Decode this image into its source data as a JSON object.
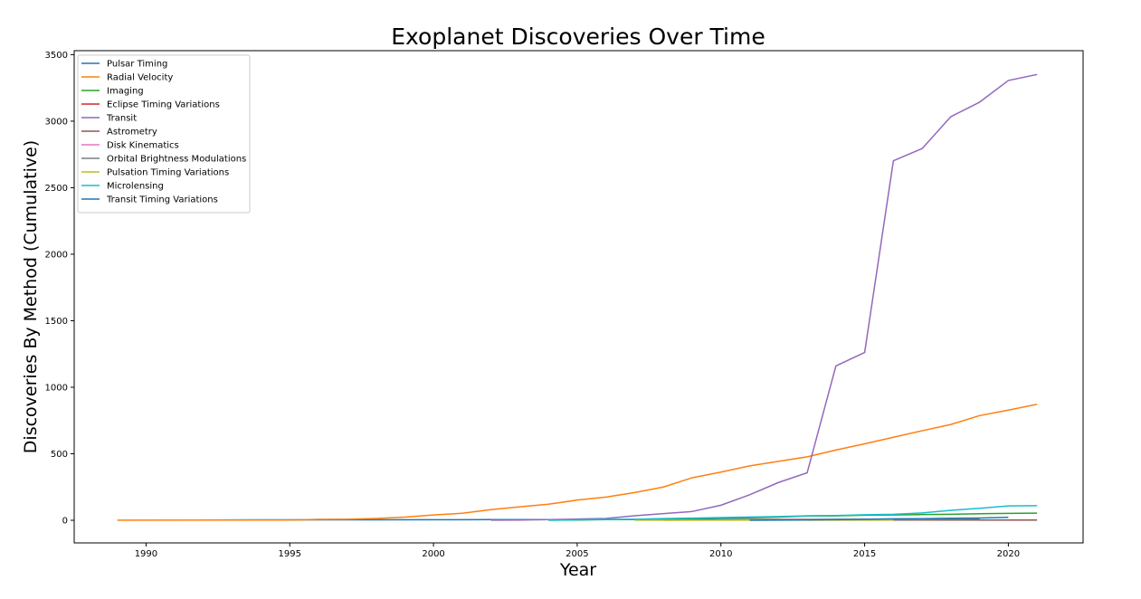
{
  "chart_data": {
    "type": "line",
    "title": "Exoplanet Discoveries Over Time",
    "xlabel": "Year",
    "ylabel": "Discoveries By Method (Cumulative)",
    "xlim": [
      1987.5,
      2022.6
    ],
    "ylim": [
      -170,
      3530
    ],
    "xticks": [
      1990,
      1995,
      2000,
      2005,
      2010,
      2015,
      2020
    ],
    "yticks": [
      0,
      500,
      1000,
      1500,
      2000,
      2500,
      3000,
      3500
    ],
    "grid": false,
    "legend": "top-left",
    "series": [
      {
        "name": "Pulsar Timing",
        "color": "#1f77b4",
        "x": [
          1992,
          1994,
          2000,
          2002,
          2011,
          2017
        ],
        "y": [
          2,
          3,
          4,
          5,
          6,
          7
        ]
      },
      {
        "name": "Radial Velocity",
        "color": "#ff7f0e",
        "x": [
          1989,
          1995,
          1996,
          1997,
          1998,
          1999,
          2000,
          2001,
          2002,
          2003,
          2004,
          2005,
          2006,
          2007,
          2008,
          2009,
          2010,
          2011,
          2012,
          2013,
          2014,
          2015,
          2016,
          2017,
          2018,
          2019,
          2020,
          2021
        ],
        "y": [
          1,
          2,
          7,
          8,
          14,
          24,
          40,
          53,
          80,
          101,
          121,
          152,
          174,
          208,
          250,
          320,
          362,
          409,
          443,
          477,
          528,
          575,
          624,
          673,
          720,
          787,
          828,
          872
        ]
      },
      {
        "name": "Imaging",
        "color": "#2ca02c",
        "x": [
          2004,
          2005,
          2006,
          2007,
          2008,
          2009,
          2010,
          2011,
          2012,
          2013,
          2014,
          2015,
          2016,
          2017,
          2018,
          2019,
          2020,
          2021
        ],
        "y": [
          1,
          2,
          5,
          6,
          11,
          12,
          17,
          19,
          24,
          32,
          33,
          38,
          40,
          43,
          45,
          49,
          52,
          54
        ]
      },
      {
        "name": "Eclipse Timing Variations",
        "color": "#d62728",
        "x": [
          2008,
          2010,
          2011,
          2013,
          2016
        ],
        "y": [
          1,
          2,
          3,
          5,
          8
        ]
      },
      {
        "name": "Transit",
        "color": "#9467bd",
        "x": [
          2002,
          2003,
          2004,
          2005,
          2006,
          2007,
          2008,
          2009,
          2010,
          2011,
          2012,
          2013,
          2014,
          2015,
          2016,
          2017,
          2018,
          2019,
          2020,
          2021
        ],
        "y": [
          1,
          2,
          5,
          9,
          14,
          34,
          50,
          66,
          113,
          192,
          284,
          357,
          1160,
          1261,
          2702,
          2794,
          3034,
          3143,
          3306,
          3351
        ]
      },
      {
        "name": "Astrometry",
        "color": "#8c564b",
        "x": [
          2013,
          2021
        ],
        "y": [
          1,
          2
        ]
      },
      {
        "name": "Disk Kinematics",
        "color": "#e377c2",
        "x": [
          2019
        ],
        "y": [
          1
        ]
      },
      {
        "name": "Orbital Brightness Modulations",
        "color": "#7f7f7f",
        "x": [
          2011,
          2013,
          2016,
          2019
        ],
        "y": [
          1,
          2,
          4,
          9
        ]
      },
      {
        "name": "Pulsation Timing Variations",
        "color": "#bcbd22",
        "x": [
          2007,
          2016
        ],
        "y": [
          1,
          2
        ]
      },
      {
        "name": "Microlensing",
        "color": "#17becf",
        "x": [
          2004,
          2005,
          2006,
          2007,
          2008,
          2009,
          2010,
          2011,
          2012,
          2013,
          2014,
          2015,
          2016,
          2017,
          2018,
          2019,
          2020,
          2021
        ],
        "y": [
          1,
          3,
          7,
          8,
          13,
          16,
          20,
          25,
          28,
          34,
          36,
          42,
          45,
          55,
          75,
          90,
          108,
          110
        ]
      },
      {
        "name": "Transit Timing Variations",
        "color": "#1f77b4",
        "x": [
          2011,
          2012,
          2013,
          2014,
          2015,
          2016,
          2017,
          2018,
          2019,
          2020
        ],
        "y": [
          1,
          2,
          3,
          6,
          8,
          11,
          12,
          15,
          17,
          22
        ]
      }
    ]
  }
}
